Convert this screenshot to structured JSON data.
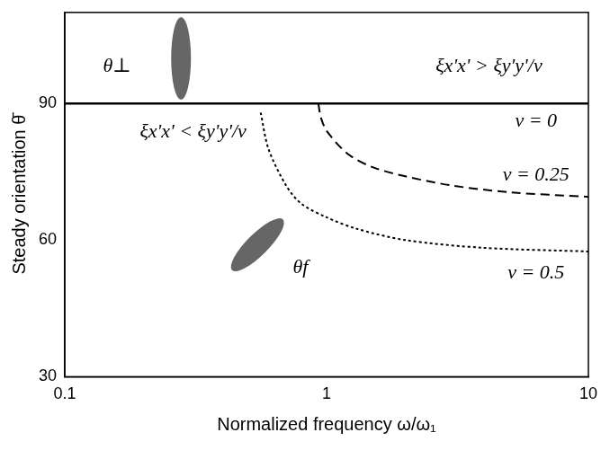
{
  "chart_data": {
    "type": "line",
    "x_label": "Normalized frequency ω/ω₁",
    "y_label": "Steady orientation θ̄",
    "log": "x",
    "grid": false,
    "xlim": [
      0.1,
      10
    ],
    "xticks": [
      0.1,
      1,
      10
    ],
    "ylim": [
      30,
      110
    ],
    "yticks": [
      30,
      60,
      90
    ],
    "series": [
      {
        "name": "ν = 0",
        "color": "#000000",
        "line_style": "solid",
        "marker": "none",
        "x": [
          0.1,
          10
        ],
        "values": [
          90,
          90
        ]
      },
      {
        "name": "ν = 0.25",
        "color": "#000000",
        "line_style": "dashed",
        "marker": "none",
        "x": [
          0.93,
          0.95,
          1,
          1.2,
          1.5,
          2,
          3,
          5,
          10
        ],
        "values": [
          90,
          87,
          84,
          79,
          76,
          74,
          72,
          70.5,
          69.5
        ]
      },
      {
        "name": "ν = 0.5",
        "color": "#000000",
        "line_style": "dotted",
        "marker": "none",
        "x": [
          0.56,
          0.6,
          0.7,
          0.8,
          1,
          1.3,
          2,
          4,
          10
        ],
        "values": [
          88,
          80,
          72,
          68,
          65,
          62.5,
          60,
          58.3,
          57.5
        ]
      }
    ],
    "annotations": [
      "θ⊥",
      "ξx'x' > ξy'y'/ν",
      "ξx'x' < ξy'y'/ν",
      "θf"
    ]
  }
}
